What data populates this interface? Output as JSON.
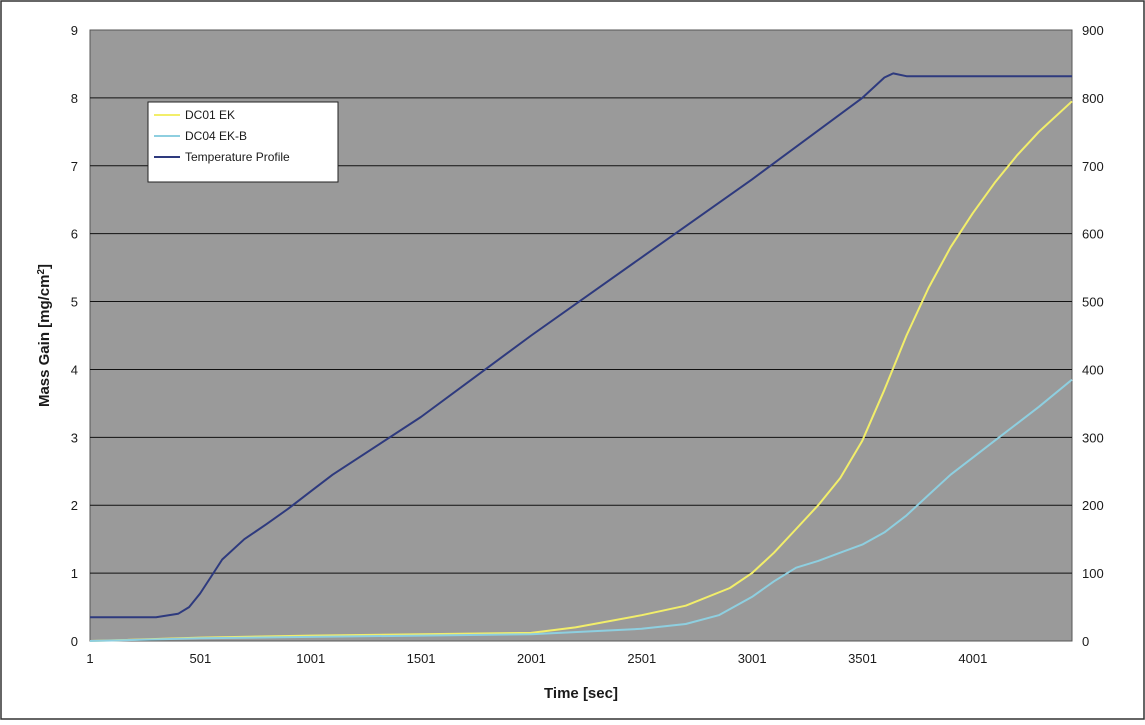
{
  "chart_data": {
    "type": "line",
    "title": "",
    "xlabel": "Time [sec]",
    "ylabel": "Mass Gain [mg/cm²]",
    "y2label": "",
    "x_ticks": [
      "1",
      "501",
      "1001",
      "1501",
      "2001",
      "2501",
      "3001",
      "3501",
      "4001"
    ],
    "xlim": [
      1,
      4450
    ],
    "ylim": [
      0,
      9
    ],
    "y_ticks": [
      "0",
      "1",
      "2",
      "3",
      "4",
      "5",
      "6",
      "7",
      "8",
      "9"
    ],
    "y2lim": [
      0,
      900
    ],
    "y2_ticks": [
      "0",
      "100",
      "200",
      "300",
      "400",
      "500",
      "600",
      "700",
      "800",
      "900"
    ],
    "grid": "horizontal",
    "legend_position": "top-left",
    "plot_background": "#9a9a9a",
    "series": [
      {
        "name": "DC01 EK",
        "axis": "left",
        "color": "#f2ee6a",
        "x": [
          1,
          500,
          1000,
          1500,
          2000,
          2200,
          2500,
          2700,
          2900,
          3000,
          3100,
          3200,
          3300,
          3400,
          3500,
          3600,
          3700,
          3800,
          3900,
          4000,
          4100,
          4200,
          4300,
          4450
        ],
        "y": [
          0.0,
          0.05,
          0.08,
          0.1,
          0.12,
          0.2,
          0.38,
          0.52,
          0.78,
          1.0,
          1.3,
          1.65,
          2.0,
          2.4,
          2.95,
          3.7,
          4.5,
          5.2,
          5.8,
          6.3,
          6.75,
          7.15,
          7.5,
          7.95
        ]
      },
      {
        "name": "DC04 EK-B",
        "axis": "left",
        "color": "#8ecfe0",
        "x": [
          1,
          500,
          1000,
          1500,
          2000,
          2500,
          2700,
          2850,
          3000,
          3100,
          3200,
          3300,
          3400,
          3500,
          3600,
          3700,
          3800,
          3900,
          4000,
          4100,
          4200,
          4300,
          4450
        ],
        "y": [
          0.0,
          0.04,
          0.06,
          0.08,
          0.1,
          0.18,
          0.25,
          0.38,
          0.65,
          0.88,
          1.08,
          1.18,
          1.3,
          1.42,
          1.6,
          1.85,
          2.15,
          2.45,
          2.7,
          2.95,
          3.2,
          3.45,
          3.85
        ]
      },
      {
        "name": "Temperature Profile",
        "axis": "right",
        "color": "#2e3a7e",
        "x": [
          1,
          300,
          400,
          450,
          500,
          550,
          600,
          700,
          800,
          900,
          1000,
          1100,
          1500,
          2000,
          2500,
          3000,
          3500,
          3600,
          3640,
          3700,
          4450
        ],
        "y": [
          35,
          35,
          40,
          50,
          70,
          95,
          120,
          150,
          172,
          195,
          220,
          245,
          330,
          450,
          565,
          680,
          800,
          830,
          836,
          832,
          832
        ]
      }
    ]
  }
}
